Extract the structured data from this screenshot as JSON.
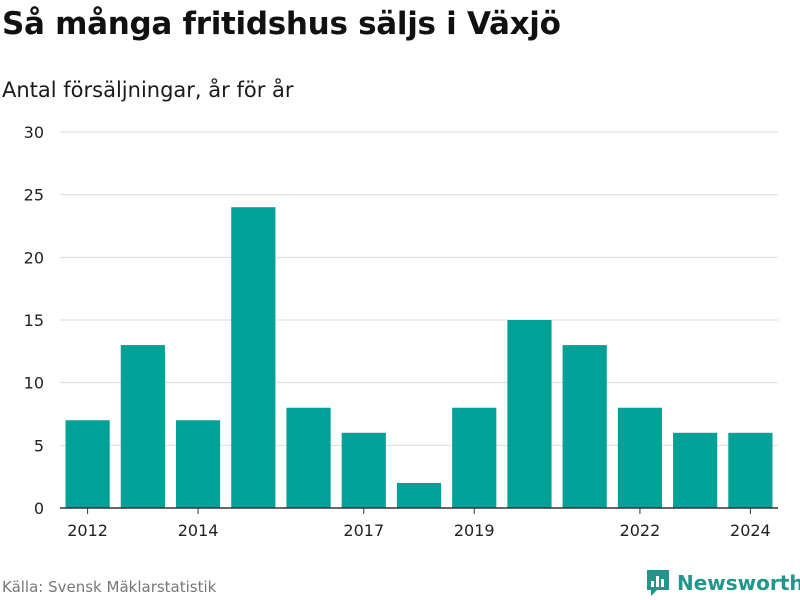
{
  "header": {
    "title": "Så många fritidshus säljs i Växjö",
    "subtitle": "Antal försäljningar, år för år"
  },
  "footer": {
    "source": "Källa: Svensk Mäklarstatistik",
    "brand": "Newsworthy"
  },
  "colors": {
    "bar": "#00a197",
    "grid": "#dddddd",
    "axis": "#333333",
    "brand": "#22968b"
  },
  "icons": {
    "brand_logo": "bar-chart-speech-bubble-icon"
  },
  "chart_data": {
    "type": "bar",
    "categories": [
      "2012",
      "2013",
      "2014",
      "2015",
      "2016",
      "2017",
      "2018",
      "2019",
      "2020",
      "2021",
      "2022",
      "2023",
      "2024"
    ],
    "values": [
      7,
      13,
      7,
      24,
      8,
      6,
      2,
      8,
      15,
      13,
      8,
      6,
      6
    ],
    "x_tick_labels": [
      "2012",
      "2014",
      "2017",
      "2019",
      "2022",
      "2024"
    ],
    "y_ticks": [
      0,
      5,
      10,
      15,
      20,
      25,
      30
    ],
    "ylim": [
      0,
      30
    ],
    "grid": true,
    "xlabel": "",
    "ylabel": ""
  }
}
